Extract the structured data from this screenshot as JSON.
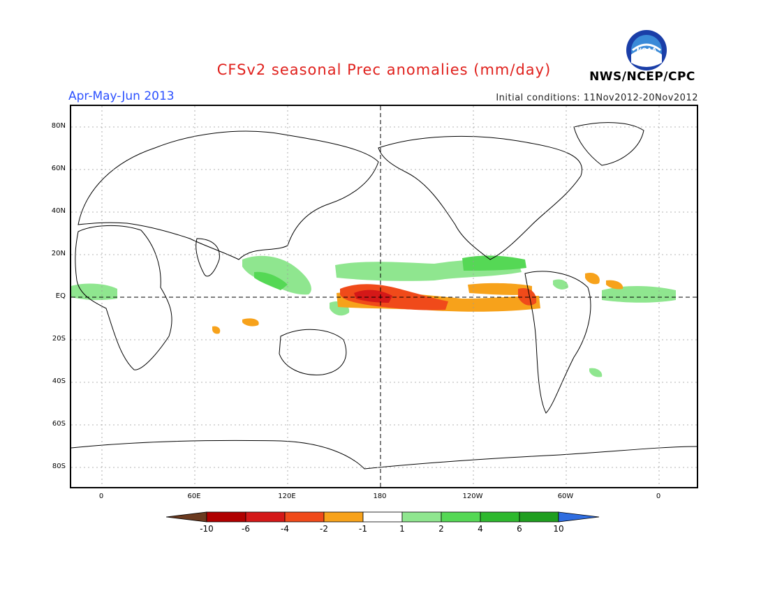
{
  "header": {
    "title": "CFSv2 seasonal Prec anomalies (mm/day)",
    "period": "Apr-May-Jun 2013",
    "initial_conditions": "Initial conditions: 11Nov2012-20Nov2012",
    "agency": "NWS/NCEP/CPC",
    "logo_text": "NOAA"
  },
  "axes": {
    "lat_labels": [
      "80N",
      "60N",
      "40N",
      "20N",
      "EQ",
      "20S",
      "40S",
      "60S",
      "80S"
    ],
    "lon_labels": [
      "0",
      "60E",
      "120E",
      "180",
      "120W",
      "60W",
      "0"
    ]
  },
  "colorbar": {
    "labels": [
      "-10",
      "-6",
      "-4",
      "-2",
      "-1",
      "1",
      "2",
      "4",
      "6",
      "10"
    ],
    "colors": [
      "#6b3a1f",
      "#b00000",
      "#d41818",
      "#f04a1a",
      "#f7a21b",
      "#ffffff",
      "#8fe68f",
      "#55d855",
      "#2eb82e",
      "#1f9e1f",
      "#2f6de0"
    ]
  },
  "map_data": {
    "lon_range": [
      -20,
      380
    ],
    "lat_range": [
      -90,
      90
    ],
    "anomaly_regions": [
      {
        "name": "equatorial-central-pacific-dry",
        "category": "-6 to -4",
        "color": "#d41818"
      },
      {
        "name": "equatorial-pacific-dry",
        "category": "-4 to -2",
        "color": "#f04a1a"
      },
      {
        "name": "east-pacific-dry-band",
        "category": "-2 to -1",
        "color": "#f7a21b"
      },
      {
        "name": "itcz-wet-band",
        "category": "1 to 2",
        "color": "#8fe68f"
      },
      {
        "name": "maritime-continent-wet",
        "category": "1 to 2",
        "color": "#8fe68f"
      },
      {
        "name": "tropical-atlantic-wet",
        "category": "1 to 2",
        "color": "#8fe68f"
      }
    ]
  }
}
